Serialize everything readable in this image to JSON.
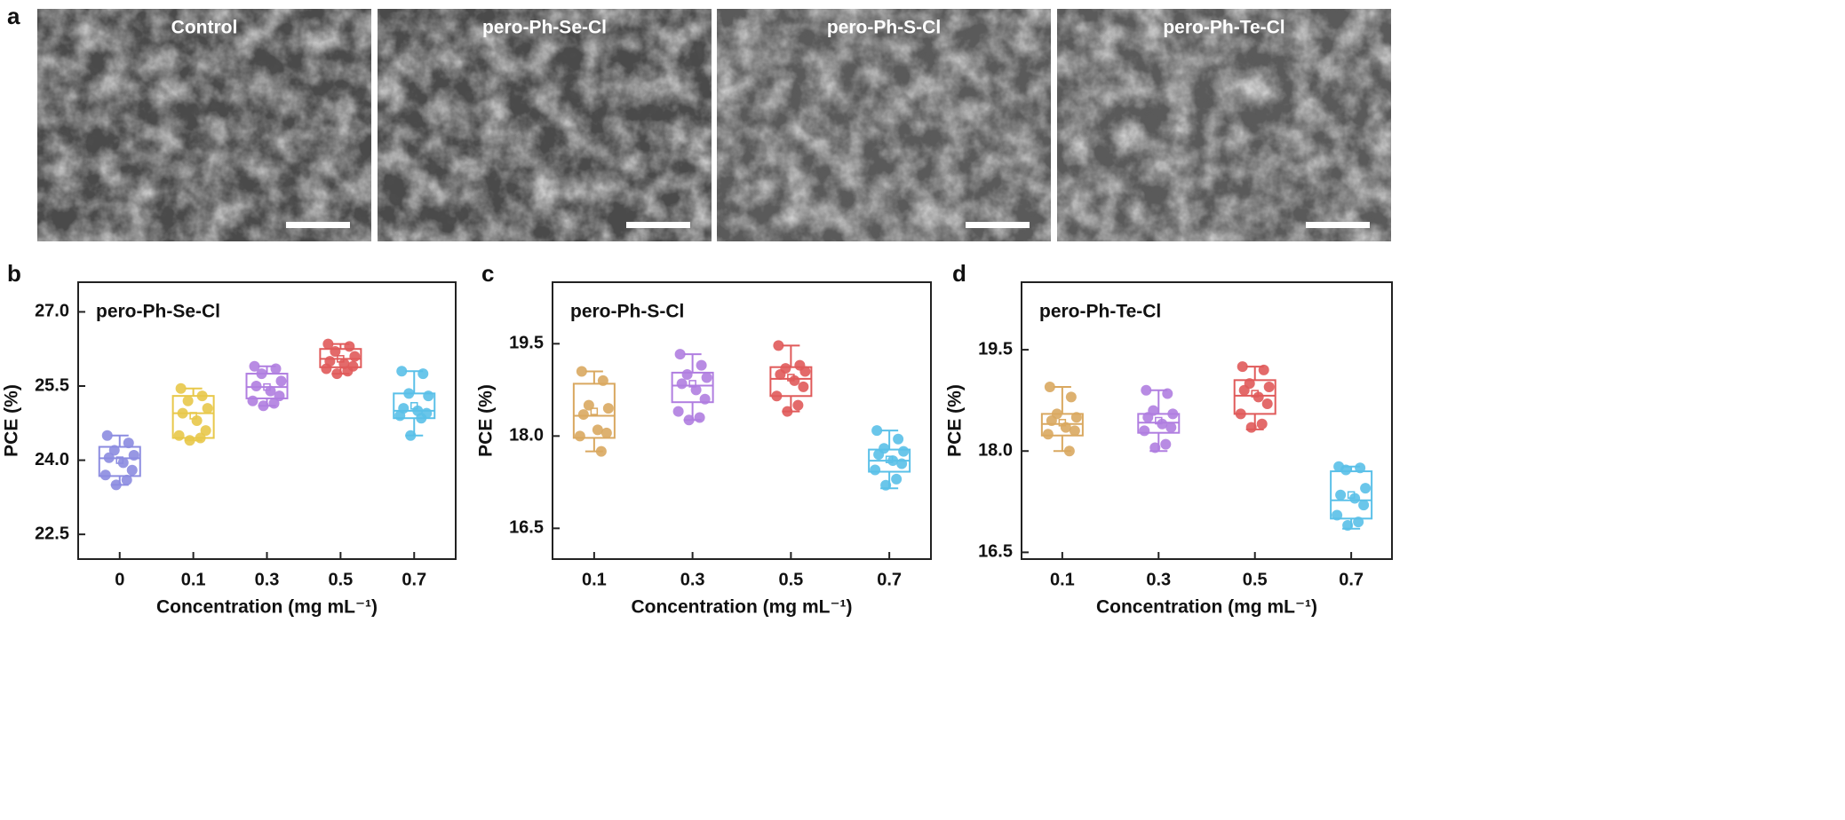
{
  "panel_a": {
    "label": "a",
    "images": [
      {
        "label": "Control"
      },
      {
        "label": "pero-Ph-Se-Cl"
      },
      {
        "label": "pero-Ph-S-Cl"
      },
      {
        "label": "pero-Ph-Te-Cl"
      }
    ]
  },
  "chart_data": [
    {
      "type": "box",
      "panel": "b",
      "title": "pero-Ph-Se-Cl",
      "x_label": "Concentration (mg mL⁻¹)",
      "y_label": "PCE (%)",
      "ylim": [
        22.0,
        27.6
      ],
      "yticks": [
        22.5,
        {
          "value": 24,
          "label": "24.0"
        },
        25.5,
        {
          "value": 27,
          "label": "27.0"
        }
      ],
      "categories": [
        "0",
        "0.1",
        "0.3",
        "0.5",
        "0.7"
      ],
      "boxes": [
        {
          "color": "#8c8ce0",
          "whisker_low": 23.5,
          "q1": 23.68,
          "median": 24.04,
          "q3": 24.27,
          "whisker_high": 24.5,
          "mean": 24.0,
          "points": [
            24.5,
            24.35,
            24.2,
            24.1,
            24.05,
            23.95,
            23.8,
            23.7,
            23.6,
            23.5
          ]
        },
        {
          "color": "#e8c84a",
          "whisker_low": 24.4,
          "q1": 24.45,
          "median": 24.95,
          "q3": 25.3,
          "whisker_high": 25.45,
          "mean": 24.9,
          "points": [
            25.45,
            25.3,
            25.2,
            25.05,
            24.95,
            24.8,
            24.6,
            24.5,
            24.45,
            24.4
          ]
        },
        {
          "color": "#b07ee0",
          "whisker_low": 25.1,
          "q1": 25.25,
          "median": 25.48,
          "q3": 25.75,
          "whisker_high": 25.9,
          "mean": 25.48,
          "points": [
            25.9,
            25.85,
            25.75,
            25.6,
            25.5,
            25.4,
            25.3,
            25.2,
            25.15,
            25.1
          ]
        },
        {
          "color": "#e05a5a",
          "whisker_low": 25.75,
          "q1": 25.88,
          "median": 26.05,
          "q3": 26.25,
          "whisker_high": 26.35,
          "mean": 26.05,
          "points": [
            26.35,
            26.3,
            26.2,
            26.1,
            26.0,
            25.95,
            25.9,
            25.85,
            25.8,
            25.75
          ]
        },
        {
          "color": "#5ac0e8",
          "whisker_low": 24.5,
          "q1": 24.85,
          "median": 25.0,
          "q3": 25.35,
          "whisker_high": 25.8,
          "mean": 25.1,
          "points": [
            25.8,
            25.75,
            25.35,
            25.3,
            25.05,
            25.0,
            24.95,
            24.9,
            24.85,
            24.5
          ]
        }
      ]
    },
    {
      "type": "box",
      "panel": "c",
      "title": "pero-Ph-S-Cl",
      "x_label": "Concentration (mg mL⁻¹)",
      "y_label": "PCE (%)",
      "ylim": [
        16.0,
        20.5
      ],
      "yticks": [
        16.5,
        {
          "value": 18,
          "label": "18.0"
        },
        19.5
      ],
      "categories": [
        "0.1",
        "0.3",
        "0.5",
        "0.7"
      ],
      "boxes": [
        {
          "color": "#d9a860",
          "whisker_low": 17.75,
          "q1": 17.97,
          "median": 18.33,
          "q3": 18.85,
          "whisker_high": 19.05,
          "mean": 18.4,
          "points": [
            19.05,
            18.9,
            18.5,
            18.45,
            18.35,
            18.1,
            18.05,
            18.0,
            17.75
          ]
        },
        {
          "color": "#b07ee0",
          "whisker_low": 18.26,
          "q1": 18.55,
          "median": 18.82,
          "q3": 19.03,
          "whisker_high": 19.33,
          "mean": 18.85,
          "points": [
            19.33,
            19.15,
            19.0,
            18.95,
            18.85,
            18.75,
            18.6,
            18.4,
            18.3,
            18.26
          ]
        },
        {
          "color": "#e05a5a",
          "whisker_low": 18.4,
          "q1": 18.65,
          "median": 18.93,
          "q3": 19.12,
          "whisker_high": 19.47,
          "mean": 18.95,
          "points": [
            19.47,
            19.15,
            19.1,
            19.05,
            19.0,
            18.9,
            18.8,
            18.65,
            18.5,
            18.4
          ]
        },
        {
          "color": "#5ac0e8",
          "whisker_low": 17.15,
          "q1": 17.42,
          "median": 17.6,
          "q3": 17.78,
          "whisker_high": 18.09,
          "mean": 17.62,
          "points": [
            18.09,
            17.95,
            17.8,
            17.75,
            17.7,
            17.6,
            17.55,
            17.45,
            17.3,
            17.2
          ]
        }
      ]
    },
    {
      "type": "box",
      "panel": "d",
      "title": "pero-Ph-Te-Cl",
      "x_label": "Concentration (mg mL⁻¹)",
      "y_label": "PCE (%)",
      "ylim": [
        16.4,
        20.5
      ],
      "yticks": [
        16.5,
        {
          "value": 18,
          "label": "18.0"
        },
        19.5
      ],
      "categories": [
        "0.1",
        "0.3",
        "0.5",
        "0.7"
      ],
      "boxes": [
        {
          "color": "#d9a860",
          "whisker_low": 18.0,
          "q1": 18.23,
          "median": 18.4,
          "q3": 18.55,
          "whisker_high": 18.95,
          "mean": 18.42,
          "points": [
            18.95,
            18.8,
            18.55,
            18.5,
            18.45,
            18.35,
            18.3,
            18.25,
            18.0
          ]
        },
        {
          "color": "#b07ee0",
          "whisker_low": 18.0,
          "q1": 18.27,
          "median": 18.42,
          "q3": 18.55,
          "whisker_high": 18.9,
          "mean": 18.45,
          "points": [
            18.9,
            18.85,
            18.6,
            18.55,
            18.5,
            18.4,
            18.35,
            18.3,
            18.1,
            18.05
          ]
        },
        {
          "color": "#e05a5a",
          "whisker_low": 18.32,
          "q1": 18.55,
          "median": 18.82,
          "q3": 19.05,
          "whisker_high": 19.25,
          "mean": 18.85,
          "points": [
            19.25,
            19.2,
            19.0,
            18.95,
            18.9,
            18.8,
            18.7,
            18.55,
            18.4,
            18.35
          ]
        },
        {
          "color": "#5ac0e8",
          "whisker_low": 16.85,
          "q1": 17.0,
          "median": 17.27,
          "q3": 17.7,
          "whisker_high": 17.77,
          "mean": 17.35,
          "points": [
            17.77,
            17.75,
            17.72,
            17.45,
            17.35,
            17.3,
            17.2,
            17.05,
            16.95,
            16.9
          ]
        }
      ]
    }
  ]
}
